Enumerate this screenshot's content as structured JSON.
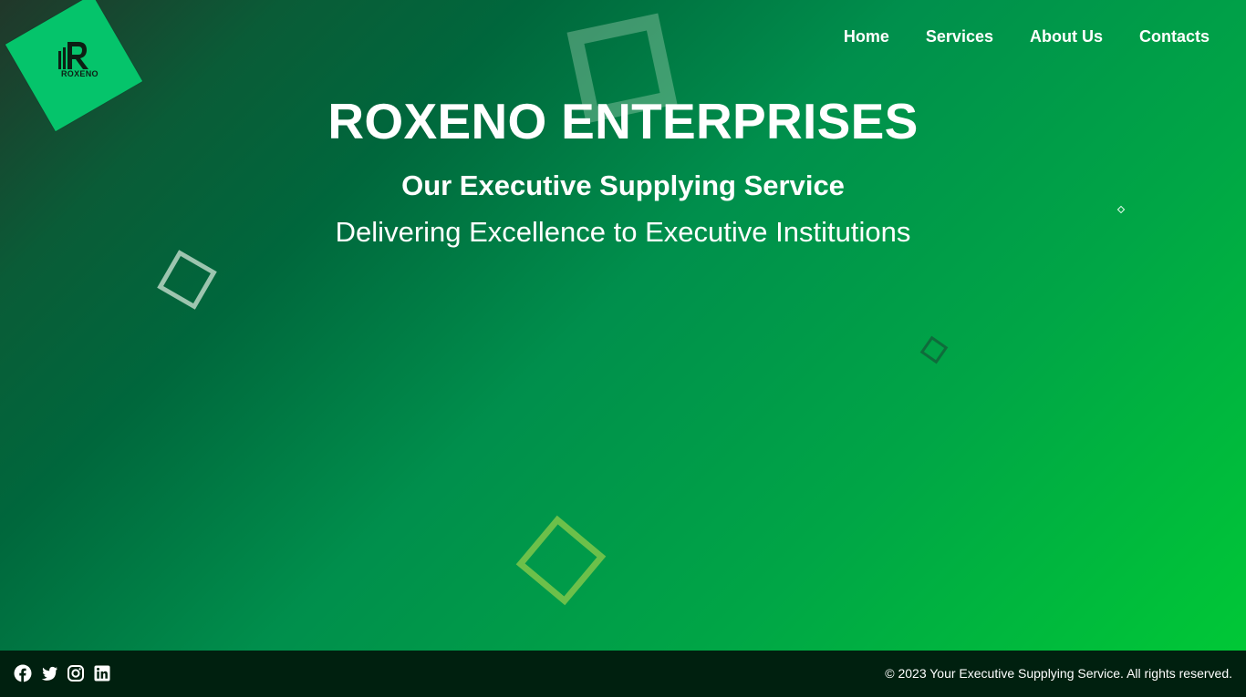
{
  "brand": {
    "logo_text": "ROXENO"
  },
  "nav": {
    "items": [
      "Home",
      "Services",
      "About Us",
      "Contacts"
    ]
  },
  "hero": {
    "title": "ROXENO ENTERPRISES",
    "subtitle": "Our Executive Supplying Service",
    "tagline": "Delivering Excellence to Executive Institutions"
  },
  "footer": {
    "social_icons": [
      "facebook-icon",
      "twitter-icon",
      "instagram-icon",
      "linkedin-icon"
    ],
    "copyright": "© 2023 Your Executive Supplying Service. All rights reserved."
  },
  "colors": {
    "accent": "#05c46b",
    "footer_bg": "#00200f",
    "gradient_start": "#21372a",
    "gradient_end": "#00c836"
  }
}
